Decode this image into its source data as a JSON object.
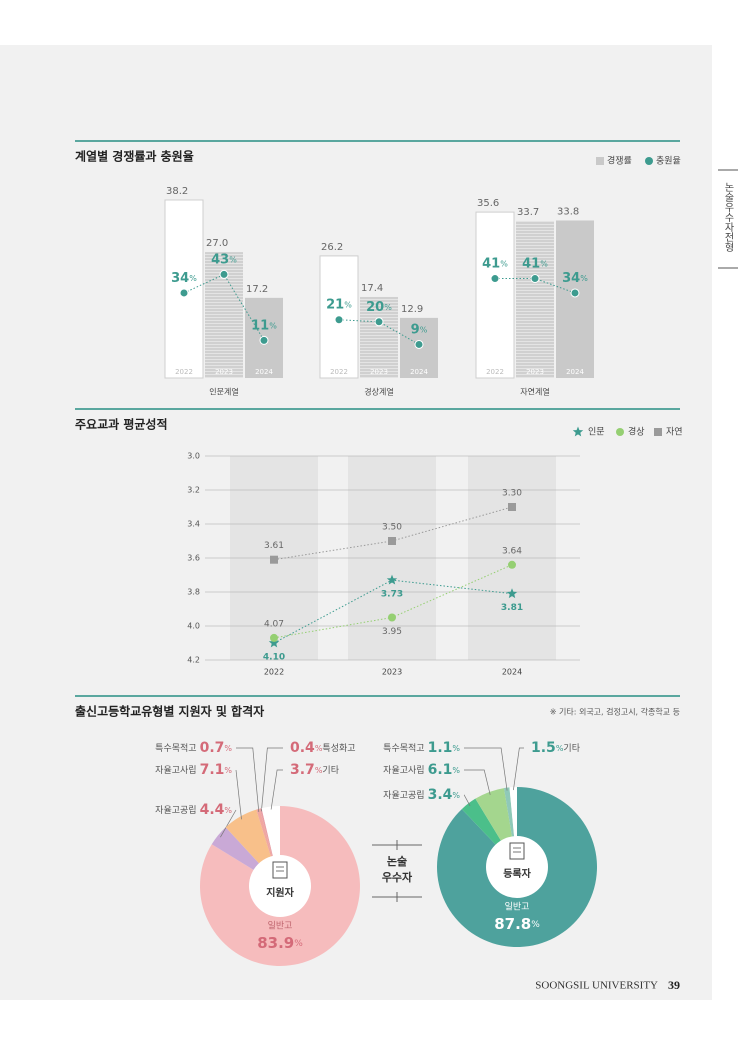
{
  "side_label": "논술우수자전형",
  "footer": {
    "university": "SOONGSIL UNIVERSITY",
    "page": "39"
  },
  "chart_data": [
    {
      "type": "bar",
      "title": "계열별 경쟁률과 충원율",
      "groups": [
        "인문계열",
        "경상계열",
        "자연계열"
      ],
      "categories": [
        "2022",
        "2023",
        "2024"
      ],
      "series": [
        {
          "name": "경쟁률",
          "color": "#c9c9c9",
          "values": [
            [
              38.2,
              27,
              17.2
            ],
            [
              26.2,
              17.4,
              12.9
            ],
            [
              35.6,
              33.7,
              33.8
            ]
          ],
          "value_labels": [
            [
              "38.2",
              "27.0",
              "17.2"
            ],
            [
              "26.2",
              "17.4",
              "12.9"
            ],
            [
              "35.6",
              "33.7",
              "33.8"
            ]
          ]
        },
        {
          "name": "충원율",
          "color": "#3d9b8f",
          "unit": "%",
          "values": [
            [
              34,
              43,
              11
            ],
            [
              21,
              20,
              9
            ],
            [
              41,
              41,
              34
            ]
          ]
        }
      ]
    },
    {
      "type": "line",
      "title": "주요교과 평균성적",
      "categories": [
        "2022",
        "2023",
        "2024"
      ],
      "ylim": [
        4.2,
        3
      ],
      "yticks": [
        {
          "value": 3,
          "label": "3.0"
        },
        3.2,
        3.4,
        3.6,
        3.8,
        {
          "value": 4,
          "label": "4.0"
        },
        4.2
      ],
      "grid": true,
      "series": [
        {
          "name": "인문",
          "color": "#3d9b8f",
          "marker": "star",
          "values": [
            4.1,
            3.73,
            3.81
          ],
          "value_labels": [
            "4.10",
            "3.73",
            "3.81"
          ]
        },
        {
          "name": "경상",
          "color": "#95cf72",
          "marker": "circle",
          "values": [
            4.07,
            3.95,
            3.64
          ]
        },
        {
          "name": "자연",
          "color": "#9a9a9a",
          "marker": "square",
          "values": [
            3.61,
            3.5,
            3.3
          ],
          "value_labels": [
            "3.61",
            "3.50",
            "3.30"
          ]
        }
      ]
    },
    {
      "type": "pie",
      "title": "출신고등학교유형별 지원자 및 합격자",
      "note": "※ 기타: 외국고, 검정고시, 각종학교 등",
      "center_label": [
        "논술",
        "우수자"
      ],
      "pies": [
        {
          "name": "지원자",
          "unit": "%",
          "categories": [
            "일반고",
            "자율고공립",
            "자율고사립",
            "특수목적고",
            "특성화고",
            "기타"
          ],
          "values": [
            83.9,
            4.4,
            7.1,
            0.7,
            0.4,
            3.7
          ],
          "colors": [
            "#f6bcbd",
            "#c9a9d6",
            "#f8c08a",
            "#f1a7a0",
            "#e9a0a6",
            "#ffffff"
          ]
        },
        {
          "name": "등록자",
          "unit": "%",
          "categories": [
            "일반고",
            "자율고공립",
            "자율고사립",
            "특수목적고",
            "기타"
          ],
          "values": [
            87.8,
            3.4,
            6.1,
            1.1,
            1.5
          ],
          "colors": [
            "#4ea29d",
            "#4bbf8a",
            "#a4d68e",
            "#8fc9b8",
            "#ffffff"
          ]
        }
      ]
    }
  ]
}
